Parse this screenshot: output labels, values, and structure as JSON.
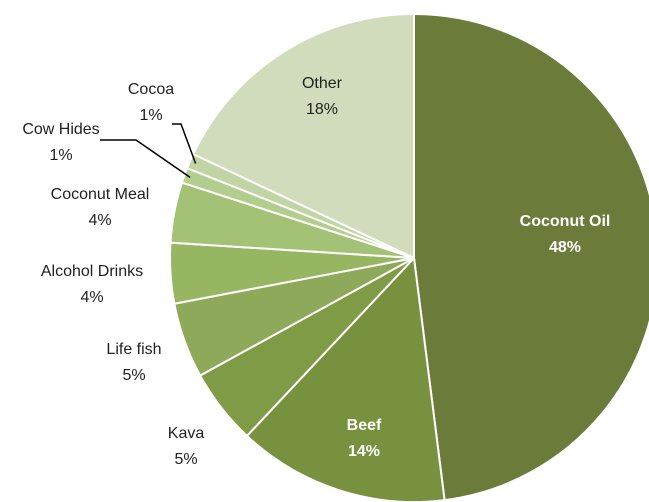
{
  "chart_data": {
    "type": "pie",
    "slices": [
      {
        "category": "Coconut Oil",
        "value": 48,
        "label": "48%",
        "color": "#6b7c3a"
      },
      {
        "category": "Beef",
        "value": 14,
        "label": "14%",
        "color": "#77913f"
      },
      {
        "category": "Kava",
        "value": 5,
        "label": "5%",
        "color": "#809b45"
      },
      {
        "category": "Life fish",
        "value": 5,
        "label": "5%",
        "color": "#8fa95a"
      },
      {
        "category": "Alcohol Drinks",
        "value": 4,
        "label": "4%",
        "color": "#97b662"
      },
      {
        "category": "Coconut Meal",
        "value": 4,
        "label": "4%",
        "color": "#a3c275"
      },
      {
        "category": "Cow Hides",
        "value": 1,
        "label": "1%",
        "color": "#b3cd8f"
      },
      {
        "category": "Cocoa",
        "value": 1,
        "label": "1%",
        "color": "#c1d5a4"
      },
      {
        "category": "Other",
        "value": 18,
        "label": "18%",
        "color": "#d0dcbc"
      }
    ],
    "start": "12 o'clock",
    "direction": "clockwise",
    "legend": "none"
  }
}
